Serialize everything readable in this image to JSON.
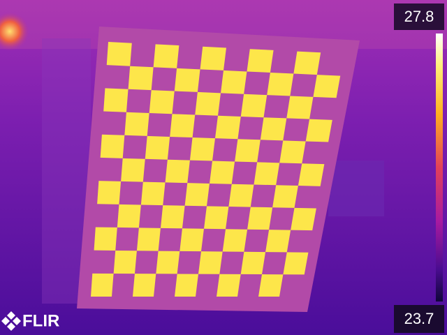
{
  "scale": {
    "max_label": "27.8",
    "min_label": "23.7"
  },
  "brand": "FLIR"
}
